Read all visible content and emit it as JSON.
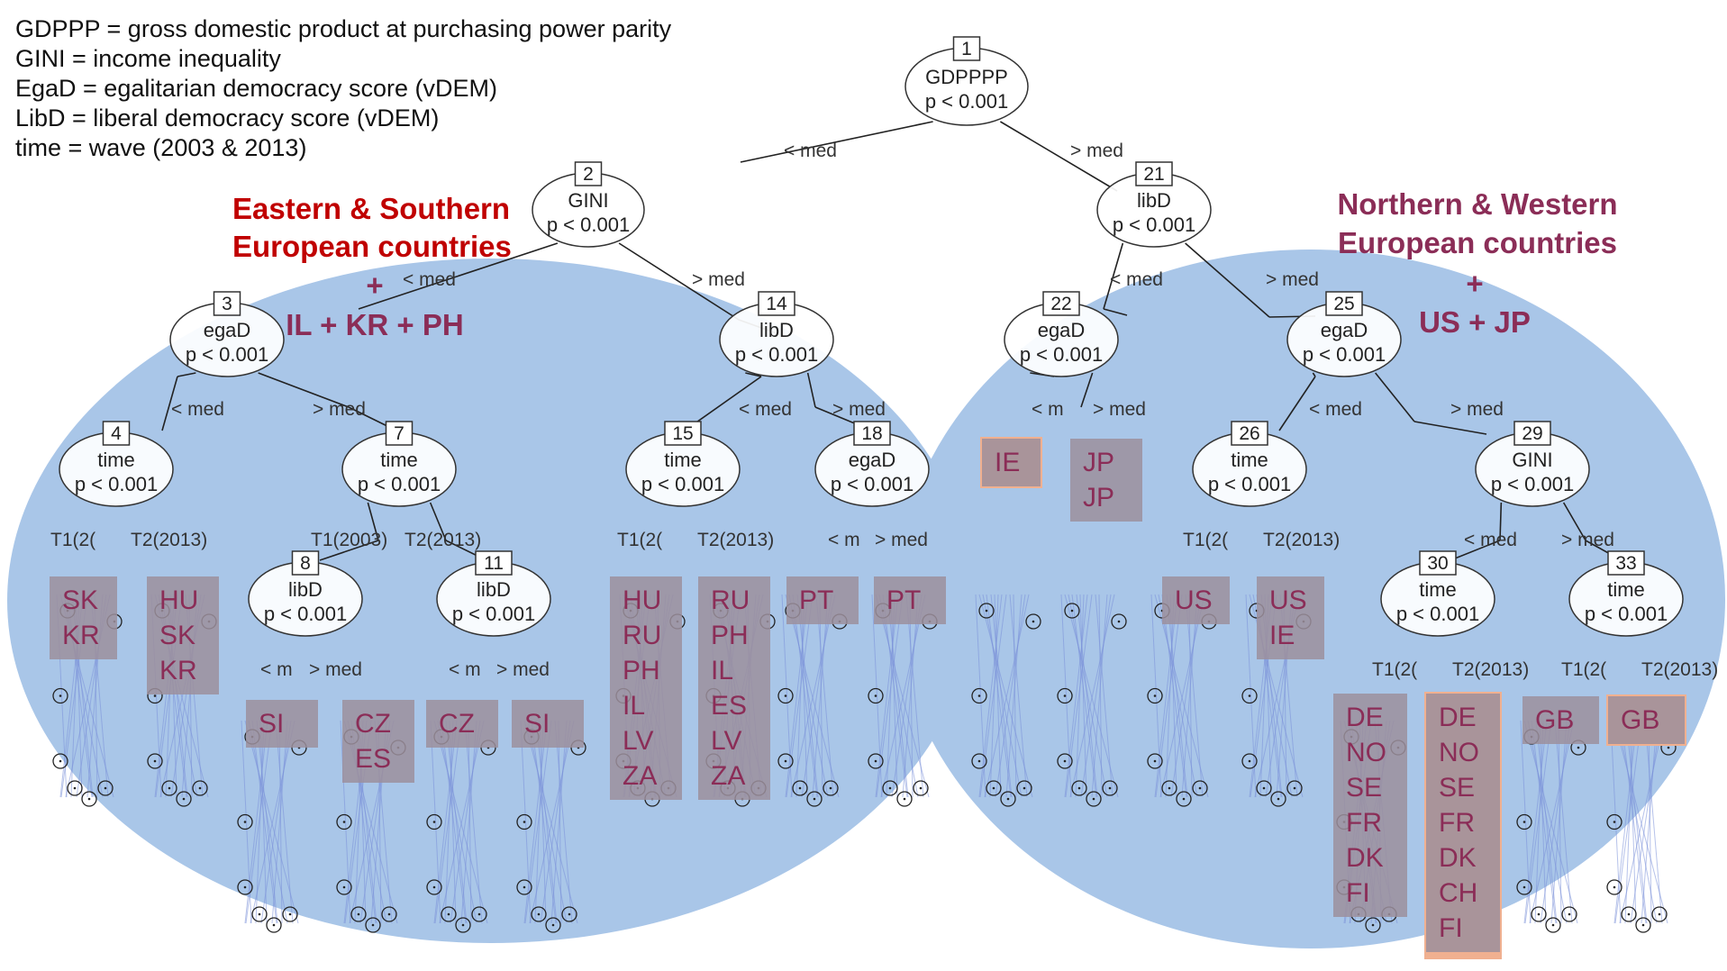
{
  "legend": [
    "GDPPP = gross domestic product at purchasing power parity",
    "GINI = income inequality",
    "EgaD = egalitarian democracy score (vDEM)",
    "LibD = liberal democracy score (vDEM)",
    "time = wave (2003 & 2013)"
  ],
  "groups": {
    "east": {
      "title_lines": [
        "Eastern & Southern",
        "European countries"
      ],
      "plus": "+",
      "extra": "IL + KR + PH",
      "color": "#c00000"
    },
    "west": {
      "title_lines": [
        "Northern & Western",
        "European countries"
      ],
      "plus": "+",
      "extra": "US + JP",
      "color": "#8b2d57"
    }
  },
  "colors": {
    "ellipse": "#a9c6e8",
    "country_box": "#9c8f9c",
    "country_highlight": "#f0b090",
    "country_text": "#8b2d57",
    "tree_line": "#222222",
    "leaf_lines": "#7a8fd8"
  },
  "nodes": [
    {
      "id": "1",
      "name": "GDPPPP",
      "p": "p < 0.001"
    },
    {
      "id": "2",
      "name": "GINI",
      "p": "p < 0.001"
    },
    {
      "id": "3",
      "name": "egaD",
      "p": "p < 0.001"
    },
    {
      "id": "4",
      "name": "time",
      "p": "p < 0.001"
    },
    {
      "id": "7",
      "name": "time",
      "p": "p < 0.001"
    },
    {
      "id": "8",
      "name": "libD",
      "p": "p < 0.001"
    },
    {
      "id": "11",
      "name": "libD",
      "p": "p < 0.001"
    },
    {
      "id": "14",
      "name": "libD",
      "p": "p < 0.001"
    },
    {
      "id": "15",
      "name": "time",
      "p": "p < 0.001"
    },
    {
      "id": "18",
      "name": "egaD",
      "p": "p < 0.001"
    },
    {
      "id": "21",
      "name": "libD",
      "p": "p < 0.001"
    },
    {
      "id": "22",
      "name": "egaD",
      "p": "p < 0.001"
    },
    {
      "id": "25",
      "name": "egaD",
      "p": "p < 0.001"
    },
    {
      "id": "26",
      "name": "time",
      "p": "p < 0.001"
    },
    {
      "id": "29",
      "name": "GINI",
      "p": "p < 0.001"
    },
    {
      "id": "30",
      "name": "time",
      "p": "p < 0.001"
    },
    {
      "id": "33",
      "name": "time",
      "p": "p < 0.001"
    }
  ],
  "edge_labels": {
    "lt_med": "< med",
    "gt_med": "> med",
    "lt_m": "< m",
    "t1_short": "T1(2(",
    "t2": "T2(2013)",
    "t1_full": "T1(2003)"
  },
  "leaves": [
    {
      "countries": [
        "SK",
        "KR"
      ]
    },
    {
      "countries": [
        "HU",
        "SK",
        "KR"
      ]
    },
    {
      "countries": [
        "SI"
      ]
    },
    {
      "countries": [
        "CZ",
        "ES"
      ]
    },
    {
      "countries": [
        "CZ"
      ]
    },
    {
      "countries": [
        "SI"
      ]
    },
    {
      "countries": [
        "HU",
        "RU",
        "PH",
        "IL",
        "LV",
        "ZA"
      ]
    },
    {
      "countries": [
        "RU",
        "PH",
        "IL",
        "ES",
        "LV",
        "ZA"
      ]
    },
    {
      "countries": [
        "PT"
      ]
    },
    {
      "countries": [
        "PT"
      ]
    },
    {
      "countries": [
        "IE"
      ]
    },
    {
      "countries": [
        "JP",
        "JP"
      ]
    },
    {
      "countries": [
        "US"
      ]
    },
    {
      "countries": [
        "US",
        "IE"
      ]
    },
    {
      "countries": [
        "DE",
        "NO",
        "SE",
        "FR",
        "DK",
        "FI"
      ]
    },
    {
      "countries": [
        "DE",
        "NO",
        "SE",
        "FR",
        "DK",
        "CH",
        "FI"
      ]
    },
    {
      "countries": [
        "GB"
      ]
    },
    {
      "countries": [
        "GB"
      ]
    }
  ]
}
